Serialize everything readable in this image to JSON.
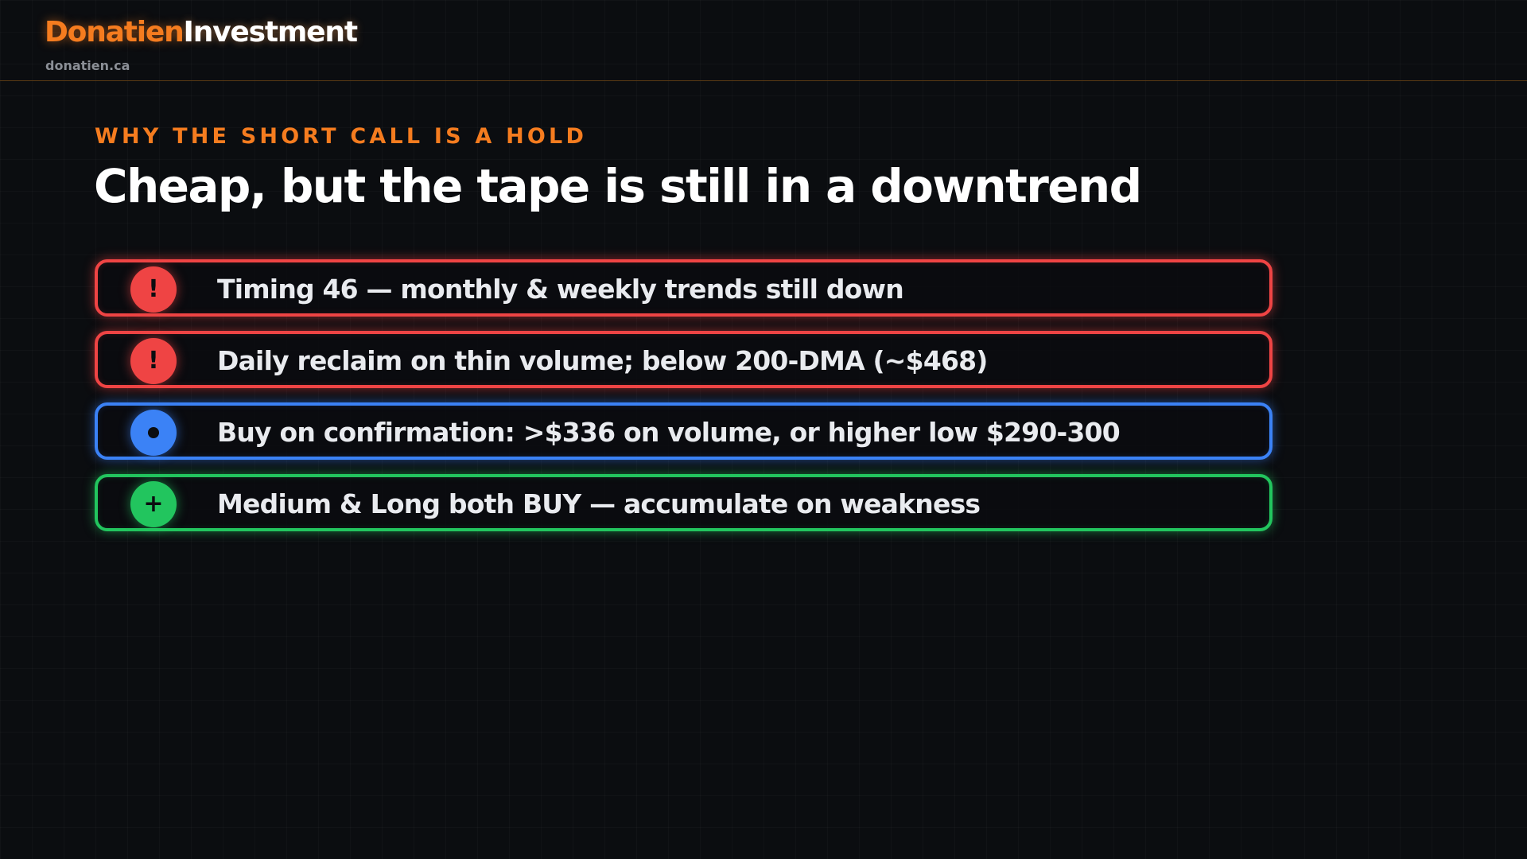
{
  "header": {
    "brand_primary": "Donatien",
    "brand_secondary": "Investment",
    "domain": "donatien.ca"
  },
  "slide": {
    "eyebrow": "WHY THE SHORT CALL IS A HOLD",
    "title": "Cheap, but the tape is still in a downtrend"
  },
  "points": [
    {
      "tone": "red",
      "icon": "exclamation-icon",
      "symbol": "!",
      "text": "Timing 46 — monthly & weekly trends still down"
    },
    {
      "tone": "red",
      "icon": "exclamation-icon",
      "symbol": "!",
      "text": "Daily reclaim on thin volume; below 200-DMA (~$468)"
    },
    {
      "tone": "blue",
      "icon": "dot-icon",
      "symbol": "",
      "text": "Buy on confirmation: >$336 on volume, or higher low $290-300"
    },
    {
      "tone": "green",
      "icon": "plus-icon",
      "symbol": "+",
      "text": "Medium & Long both BUY — accumulate on weakness"
    }
  ],
  "colors": {
    "accent": "#f57c1f",
    "red": "#ef4444",
    "blue": "#3b82f6",
    "green": "#22c55e",
    "background": "#0b0d10"
  }
}
